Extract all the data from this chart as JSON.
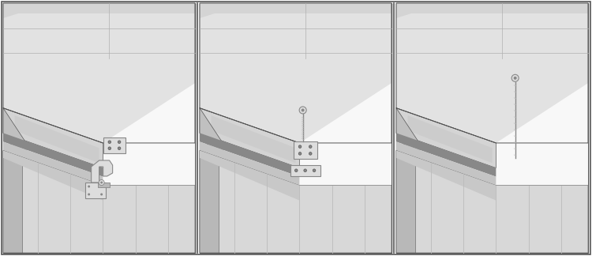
{
  "figure_width": 7.5,
  "figure_height": 3.24,
  "dpi": 100,
  "bg": "#ffffff",
  "border": "#555555",
  "colors": {
    "bg_white": "#f8f8f8",
    "lid_top": "#e2e2e2",
    "lid_face": "#d4d4d4",
    "lid_side": "#c0c0c0",
    "lid_edge": "#b0b0b0",
    "lid_inner": "#cccccc",
    "body_top": "#c8c8c8",
    "body_face": "#d8d8d8",
    "body_side": "#b8b8b8",
    "strip_dark": "#888888",
    "strip_mid": "#aaaaaa",
    "strip_light": "#c4c4c4",
    "gap_dark": "#777777",
    "gap_light": "#bbbbbb",
    "metal_light": "#dddddd",
    "metal_mid": "#b8b8b8",
    "metal_dark": "#888888",
    "metal_vdark": "#555555",
    "line": "#555555",
    "slat_line": "#bbbbbb"
  }
}
